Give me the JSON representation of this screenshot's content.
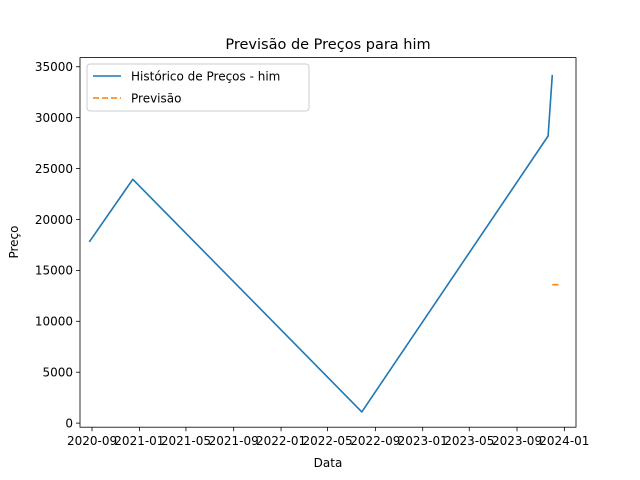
{
  "chart_data": {
    "type": "line",
    "title": "Previsão de Preços para him",
    "xlabel": "Data",
    "ylabel": "Preço",
    "x_ticks": [
      {
        "date": "2020-09-01",
        "label": "2020-09"
      },
      {
        "date": "2021-01-01",
        "label": "2021-01"
      },
      {
        "date": "2021-05-01",
        "label": "2021-05"
      },
      {
        "date": "2021-09-01",
        "label": "2021-09"
      },
      {
        "date": "2022-01-01",
        "label": "2022-01"
      },
      {
        "date": "2022-05-01",
        "label": "2022-05"
      },
      {
        "date": "2022-09-01",
        "label": "2022-09"
      },
      {
        "date": "2023-01-01",
        "label": "2023-01"
      },
      {
        "date": "2023-05-01",
        "label": "2023-05"
      },
      {
        "date": "2023-09-01",
        "label": "2023-09"
      },
      {
        "date": "2024-01-01",
        "label": "2024-01"
      }
    ],
    "y_ticks": [
      0,
      5000,
      10000,
      15000,
      20000,
      25000,
      30000,
      35000
    ],
    "y_tick_labels": [
      "0",
      "5000",
      "10000",
      "15000",
      "20000",
      "25000",
      "30000",
      "35000"
    ],
    "xlim": [
      "2020-08-01",
      "2024-01-31"
    ],
    "ylim": [
      -400,
      35900
    ],
    "grid": false,
    "legend_position": "upper-left",
    "series": [
      {
        "name": "Histórico de Preços - him",
        "color": "#1f77b4",
        "style": "solid",
        "x": [
          "2020-08-25",
          "2020-12-15",
          "2022-07-28",
          "2023-11-20",
          "2023-12-01"
        ],
        "y": [
          17800,
          23950,
          1100,
          28200,
          34200
        ]
      },
      {
        "name": "Previsão",
        "color": "#ff7f0e",
        "style": "dashed",
        "x": [
          "2023-12-01",
          "2023-12-20"
        ],
        "y": [
          13600,
          13600
        ]
      }
    ]
  }
}
